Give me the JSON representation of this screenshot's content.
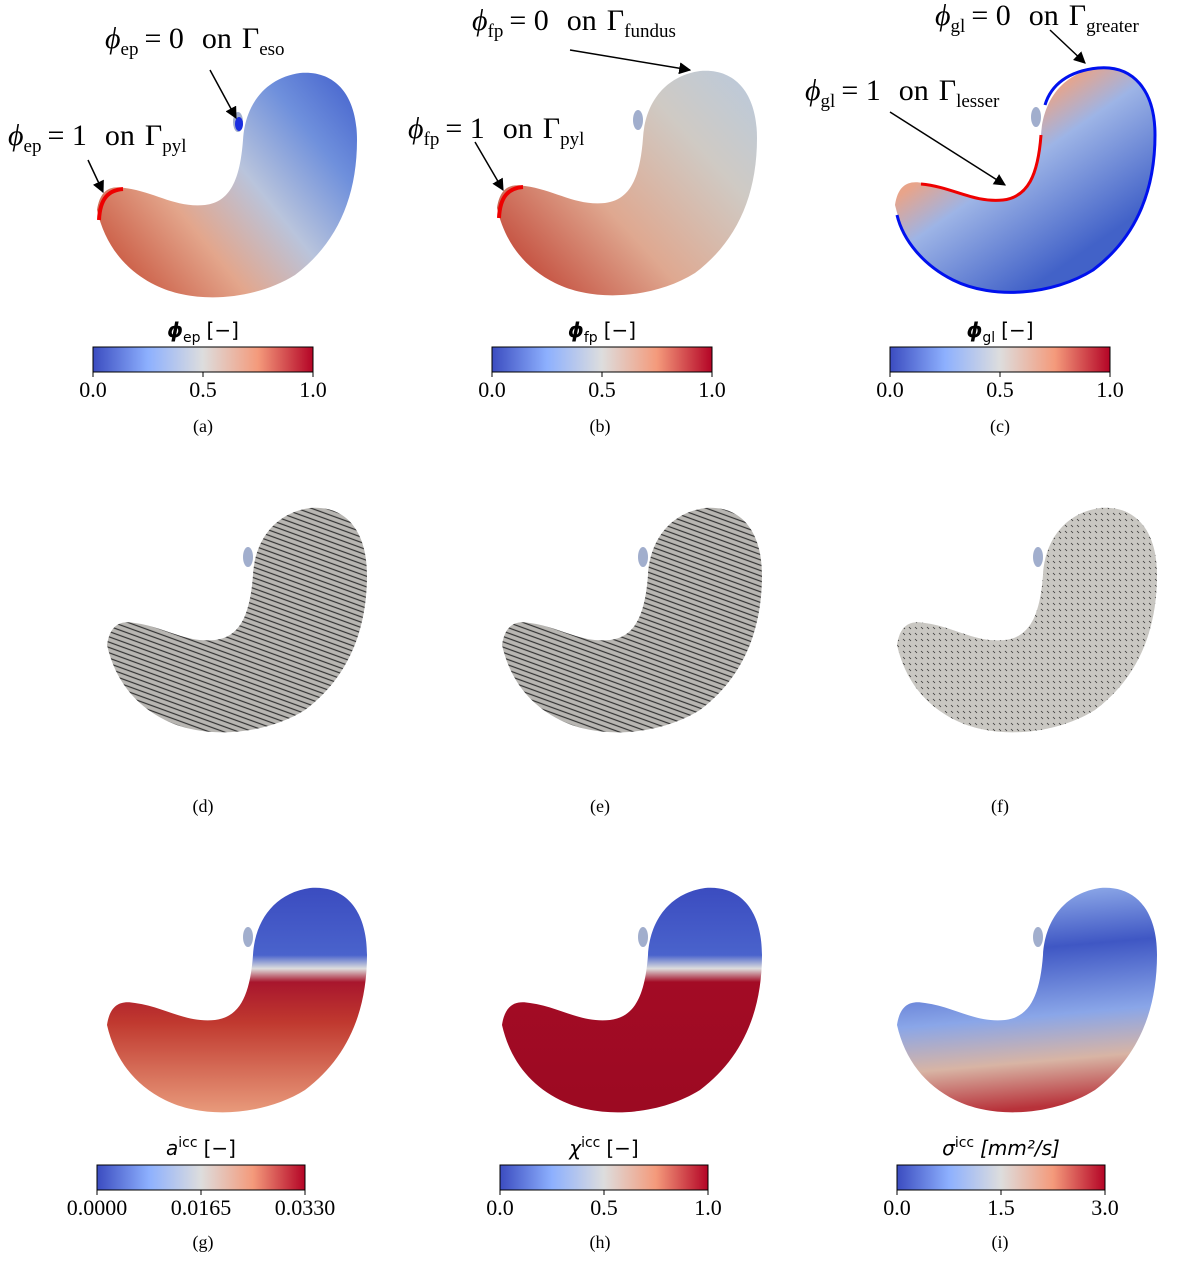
{
  "panels": [
    {
      "caption": "(a)",
      "colorbar": {
        "symbol": "ϕ",
        "sub": "ep",
        "unit": "[−]",
        "ticks": [
          "0.0",
          "0.5",
          "1.0"
        ]
      },
      "annotations": [
        {
          "lhs": "ϕ",
          "lhs_sub": "ep",
          "eq": "= 0",
          "on": "on",
          "rhs": "Γ",
          "rhs_sub": "eso"
        },
        {
          "lhs": "ϕ",
          "lhs_sub": "ep",
          "eq": "= 1",
          "on": "on",
          "rhs": "Γ",
          "rhs_sub": "pyl"
        }
      ]
    },
    {
      "caption": "(b)",
      "colorbar": {
        "symbol": "ϕ",
        "sub": "fp",
        "unit": "[−]",
        "ticks": [
          "0.0",
          "0.5",
          "1.0"
        ]
      },
      "annotations": [
        {
          "lhs": "ϕ",
          "lhs_sub": "fp",
          "eq": "= 0",
          "on": "on",
          "rhs": "Γ",
          "rhs_sub": "fundus"
        },
        {
          "lhs": "ϕ",
          "lhs_sub": "fp",
          "eq": "= 1",
          "on": "on",
          "rhs": "Γ",
          "rhs_sub": "pyl"
        }
      ]
    },
    {
      "caption": "(c)",
      "colorbar": {
        "symbol": "ϕ",
        "sub": "gl",
        "unit": "[−]",
        "ticks": [
          "0.0",
          "0.5",
          "1.0"
        ]
      },
      "annotations": [
        {
          "lhs": "ϕ",
          "lhs_sub": "gl",
          "eq": "= 0",
          "on": "on",
          "rhs": "Γ",
          "rhs_sub": "greater"
        },
        {
          "lhs": "ϕ",
          "lhs_sub": "gl",
          "eq": "= 1",
          "on": "on",
          "rhs": "Γ",
          "rhs_sub": "lesser"
        }
      ]
    },
    {
      "caption": "(d)"
    },
    {
      "caption": "(e)"
    },
    {
      "caption": "(f)"
    },
    {
      "caption": "(g)",
      "colorbar": {
        "symbol": "a",
        "sup": "icc",
        "unit": "[−]",
        "ticks": [
          "0.0000",
          "0.0165",
          "0.0330"
        ]
      }
    },
    {
      "caption": "(h)",
      "colorbar": {
        "symbol": "χ",
        "sup": "icc",
        "unit": "[−]",
        "ticks": [
          "0.0",
          "0.5",
          "1.0"
        ]
      }
    },
    {
      "caption": "(i)",
      "colorbar": {
        "symbol": "σ",
        "sup": "icc",
        "unit": "[mm²/s]",
        "ticks": [
          "0.0",
          "1.5",
          "3.0"
        ]
      }
    }
  ]
}
